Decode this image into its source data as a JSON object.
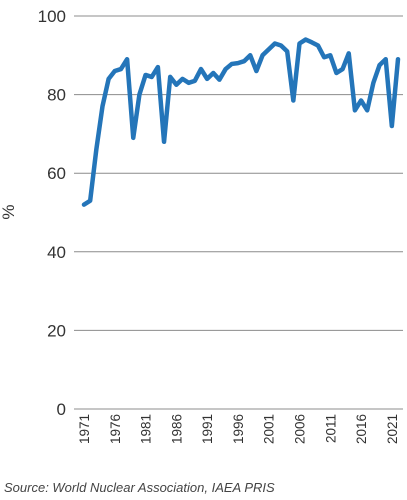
{
  "chart_data": {
    "type": "line",
    "title": "",
    "xlabel": "",
    "ylabel": "%",
    "ylim": [
      0,
      100
    ],
    "xlim": [
      1971,
      2022
    ],
    "y_ticks": [
      "0",
      "20",
      "40",
      "60",
      "80",
      "100"
    ],
    "x_ticks": [
      "1971",
      "1976",
      "1981",
      "1986",
      "1991",
      "1996",
      "2001",
      "2006",
      "2011",
      "2016",
      "2021"
    ],
    "grid": true,
    "legend": "none",
    "series": [
      {
        "color": "#2475b9",
        "x": [
          1971,
          1972,
          1973,
          1974,
          1975,
          1976,
          1977,
          1978,
          1979,
          1980,
          1981,
          1982,
          1983,
          1984,
          1985,
          1986,
          1987,
          1988,
          1989,
          1990,
          1991,
          1992,
          1993,
          1994,
          1995,
          1996,
          1997,
          1998,
          1999,
          2000,
          2001,
          2002,
          2003,
          2004,
          2005,
          2006,
          2007,
          2008,
          2009,
          2010,
          2011,
          2012,
          2013,
          2014,
          2015,
          2016,
          2017,
          2018,
          2019,
          2020,
          2021,
          2022
        ],
        "values": [
          52,
          53,
          66,
          77,
          84,
          86,
          86.5,
          89,
          69,
          80,
          85,
          84.5,
          87,
          68,
          84.5,
          82.5,
          84,
          83,
          83.5,
          86.5,
          84,
          85.5,
          83.8,
          86.5,
          87.8,
          88,
          88.5,
          90,
          86,
          90,
          91.5,
          93,
          92.5,
          91,
          78.5,
          93,
          94,
          93.3,
          92.5,
          89.5,
          90,
          85.5,
          86.5,
          90.5,
          76,
          78.5,
          76,
          83,
          87.5,
          89,
          72,
          89
        ]
      }
    ]
  },
  "source": "Source: World Nuclear Association, IAEA PRIS"
}
